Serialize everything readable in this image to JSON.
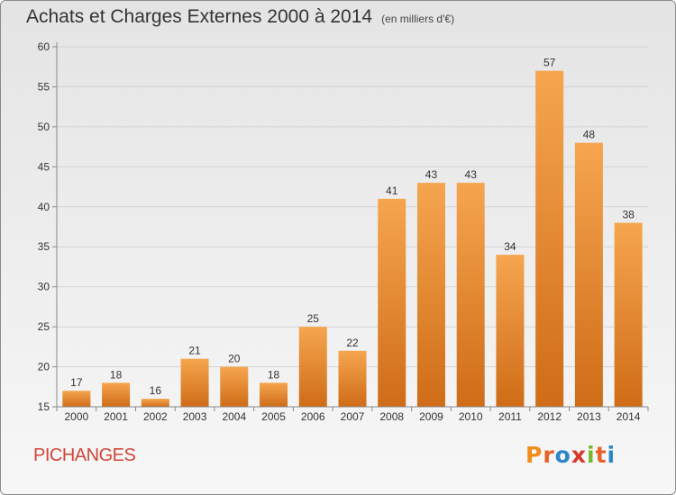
{
  "title": "Achats et Charges Externes 2000 à 2014",
  "unit": "(en milliers d'€)",
  "location": "PICHANGES",
  "brand": "Proxiti",
  "colors": {
    "bar_top": "#f6a54f",
    "bar_bottom": "#cf6c17",
    "location": "#d1453b",
    "brand_letters": [
      "#f08c1c",
      "#e8612c",
      "#2c86c8",
      "#d8382b",
      "#76b82a",
      "#e8612c",
      "#2c86c8"
    ]
  },
  "chart_data": {
    "type": "bar",
    "title": "Achats et Charges Externes 2000 à 2014",
    "categories": [
      "2000",
      "2001",
      "2002",
      "2003",
      "2004",
      "2005",
      "2006",
      "2007",
      "2008",
      "2009",
      "2010",
      "2011",
      "2012",
      "2013",
      "2014"
    ],
    "values": [
      17,
      18,
      16,
      21,
      20,
      18,
      25,
      22,
      41,
      43,
      43,
      34,
      57,
      48,
      38
    ],
    "ylim": [
      15,
      60
    ],
    "yticks": [
      15,
      20,
      25,
      30,
      35,
      40,
      45,
      50,
      55,
      60
    ],
    "grid": true,
    "legend": "none"
  }
}
